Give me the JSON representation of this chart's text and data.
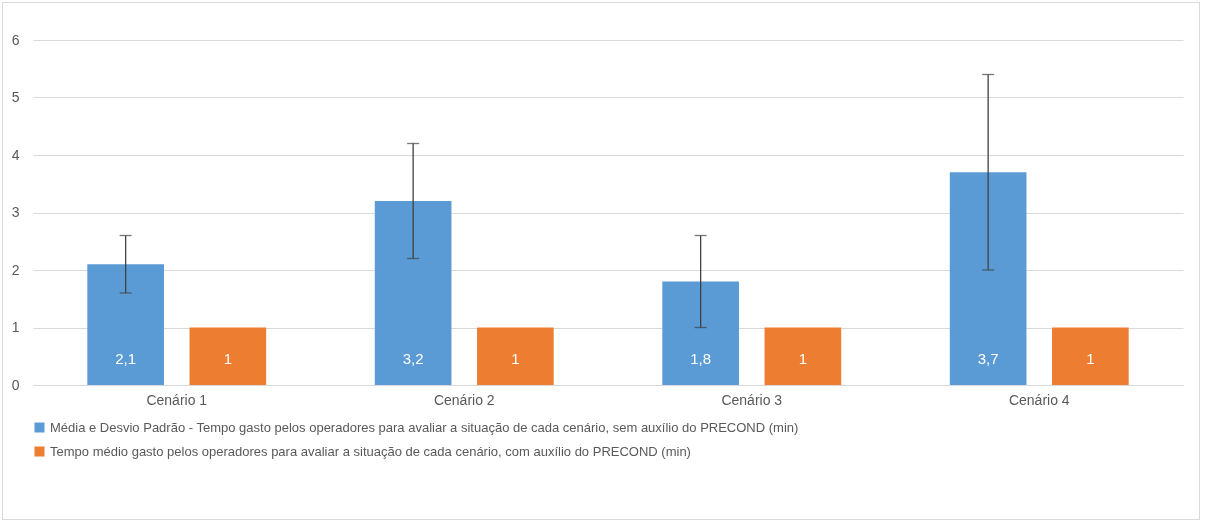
{
  "chart_data": {
    "type": "bar",
    "categories": [
      "Cenário 1",
      "Cenário 2",
      "Cenário 3",
      "Cenário 4"
    ],
    "series": [
      {
        "name": "Média e Desvio Padrão - Tempo gasto pelos operadores para avaliar a situação de cada cenário, sem auxílio do PRECOND (min)",
        "color": "#5b9bd5",
        "values": [
          2.1,
          3.2,
          1.8,
          3.7
        ],
        "errors": [
          0.5,
          1,
          0.8,
          1.7
        ],
        "value_labels": [
          "2,1",
          "3,2",
          "1,8",
          "3,7"
        ]
      },
      {
        "name": "Tempo médio gasto pelos operadores para avaliar a situação de cada cenário, com auxílio do PRECOND (min)",
        "color": "#ed7d31",
        "values": [
          1,
          1,
          1,
          1
        ],
        "value_labels": [
          "1",
          "1",
          "1",
          "1"
        ]
      }
    ],
    "ylim": [
      0,
      6
    ],
    "yticks": [
      0,
      1,
      2,
      3,
      4,
      5,
      6
    ],
    "grid": "y",
    "legend": "bottom"
  }
}
